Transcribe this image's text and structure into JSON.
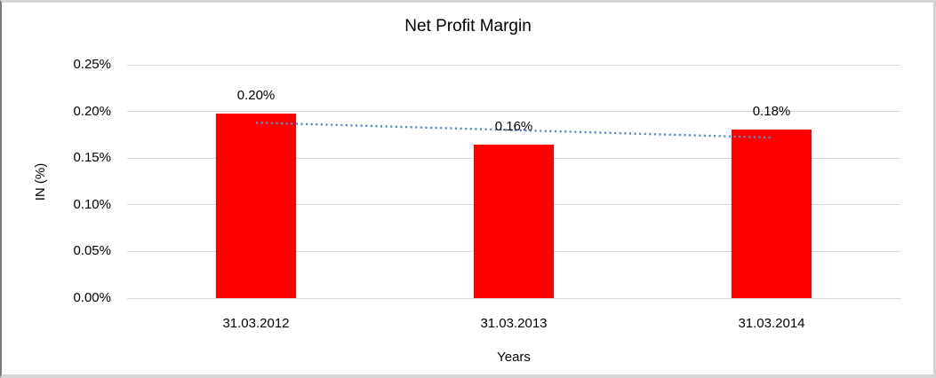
{
  "chart_data": {
    "type": "bar",
    "title": "Net Profit Margin",
    "xlabel": "Years",
    "ylabel": "IN (%)",
    "categories": [
      "31.03.2012",
      "31.03.2013",
      "31.03.2014"
    ],
    "series": [
      {
        "name": "Net Profit Margin",
        "values": [
          0.198,
          0.164,
          0.181
        ],
        "data_labels": [
          "0.20%",
          "0.16%",
          "0.18%"
        ],
        "color": "#ff0000"
      }
    ],
    "trendline": {
      "type": "linear",
      "style": "dotted",
      "color": "#5b8ac6",
      "start_value": 0.188,
      "end_value": 0.172
    },
    "ylim": [
      0,
      0.25
    ],
    "yticks": [
      {
        "value": 0.0,
        "label": "0.00%"
      },
      {
        "value": 0.05,
        "label": "0.05%"
      },
      {
        "value": 0.1,
        "label": "0.10%"
      },
      {
        "value": 0.15,
        "label": "0.15%"
      },
      {
        "value": 0.2,
        "label": "0.20%"
      },
      {
        "value": 0.25,
        "label": "0.25%"
      }
    ],
    "grid": true,
    "gridline_color": "#d9d9d9",
    "legend": "none",
    "text_color": "#000000"
  }
}
